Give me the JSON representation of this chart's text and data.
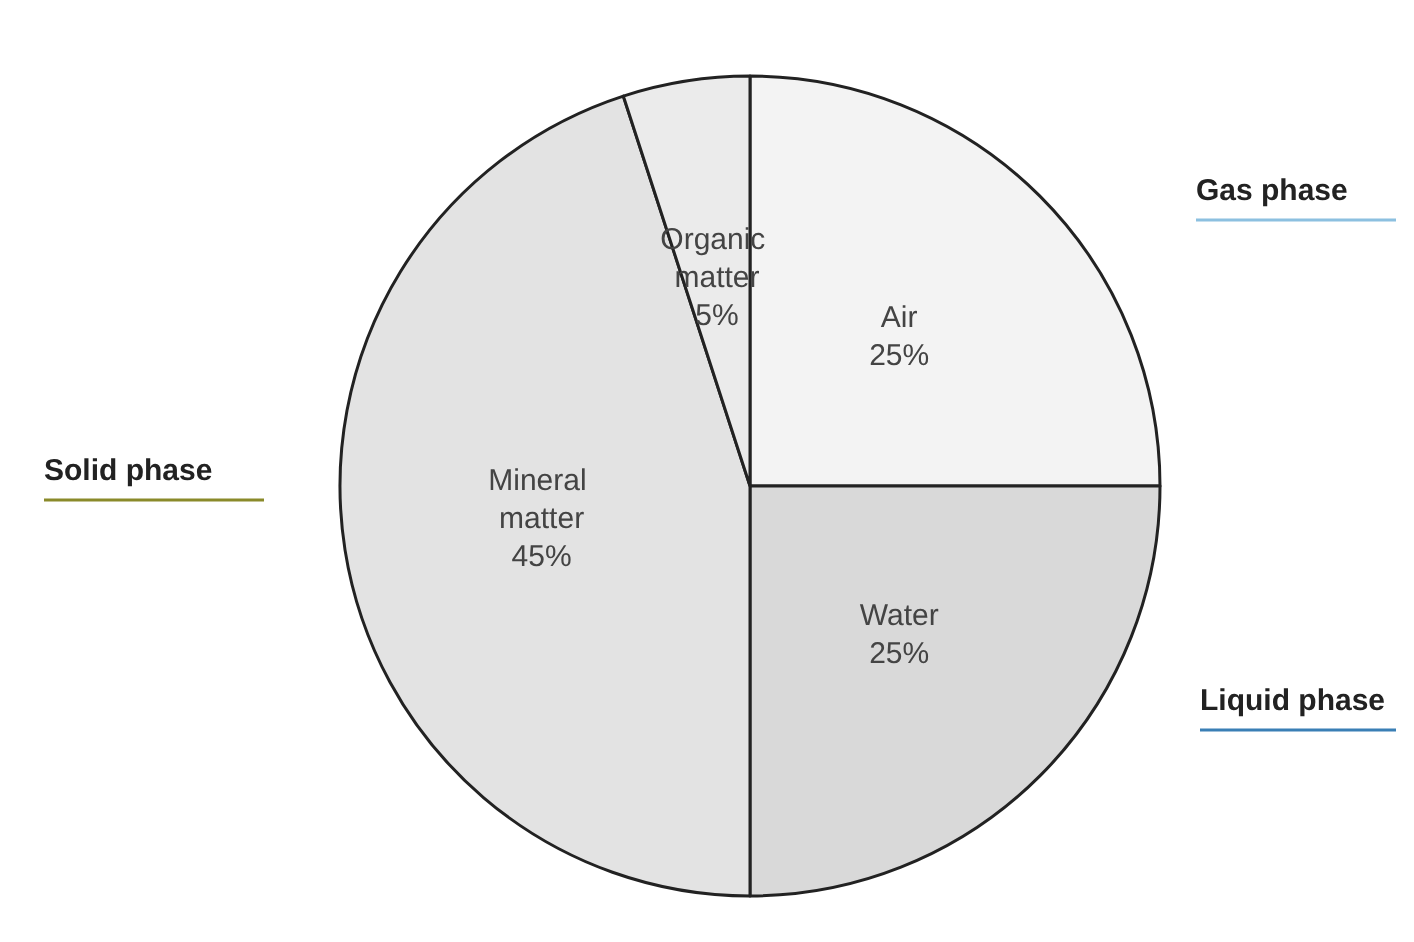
{
  "chart_data": {
    "type": "pie",
    "categories": [
      "Air",
      "Water",
      "Mineral matter",
      "Organic matter"
    ],
    "values": [
      25,
      25,
      45,
      5
    ],
    "value_labels": [
      "25%",
      "25%",
      "45%",
      "5%"
    ],
    "colors": [
      "#f3f3f3",
      "#d9d9d9",
      "#e3e3e3",
      "#ebebeb"
    ],
    "annotations": [
      "Gas phase",
      "Liquid phase",
      "Solid phase"
    ]
  }
}
